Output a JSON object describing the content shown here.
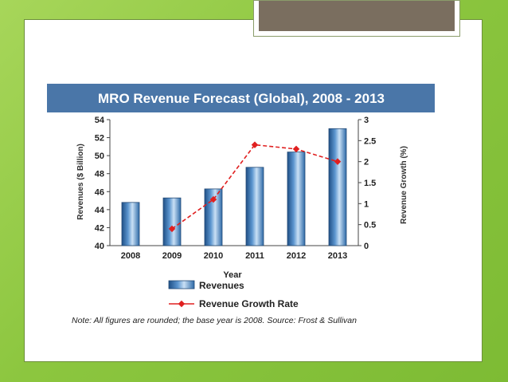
{
  "chart_data": {
    "type": "bar",
    "title": "MRO Revenue Forecast (Global), 2008 - 2013",
    "categories": [
      "2008",
      "2009",
      "2010",
      "2011",
      "2012",
      "2013"
    ],
    "xlabel": "Year",
    "ylabel": "Revenues ($ Billion)",
    "ylabel_right": "Revenue Growth (%)",
    "ylim": [
      40,
      54
    ],
    "ylim_right": [
      0,
      3
    ],
    "yticks": [
      40,
      42,
      44,
      46,
      48,
      50,
      52,
      54
    ],
    "yticks_right": [
      "0",
      "0.5",
      "1",
      "1.5",
      "2",
      "2.5",
      "3"
    ],
    "series": [
      {
        "name": "Revenues",
        "type": "bar",
        "axis": "left",
        "values": [
          44.8,
          45.3,
          46.3,
          48.7,
          50.4,
          53.0
        ]
      },
      {
        "name": "Revenue Growth Rate",
        "type": "line",
        "axis": "right",
        "values": [
          null,
          0.4,
          1.1,
          2.4,
          2.3,
          2.0
        ]
      }
    ],
    "note": "Note: All figures are rounded; the base year is 2008. Source: Frost & Sullivan",
    "colors": {
      "title_band": "#4a76a8",
      "bar_fill_light": "#c9e0f5",
      "bar_fill_dark": "#2e6aa8",
      "line": "#e02020"
    }
  }
}
